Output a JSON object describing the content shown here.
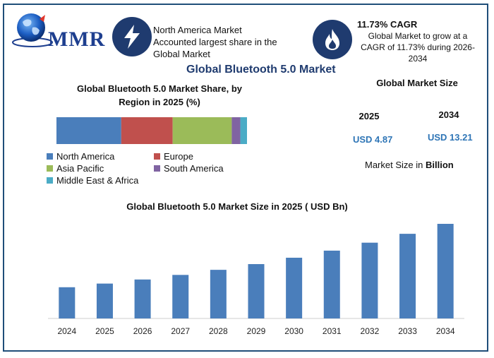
{
  "logo": {
    "text": "MMR"
  },
  "info_card": {
    "lines": [
      "North America Market",
      "Accounted largest share in the",
      "Global Market"
    ]
  },
  "cagr_card": {
    "title": "11.73% CAGR",
    "lines": [
      "Global Market to grow at a",
      "CAGR of 11.73% during 2026-",
      "2034"
    ]
  },
  "main_title": "Global Bluetooth 5.0 Market",
  "market_size": {
    "title": "Global Market Size",
    "year_a": "2025",
    "year_b": "2034",
    "value_a": "USD 4.87",
    "value_b": "USD 13.21",
    "note_prefix": "Market Size in ",
    "note_bold": "Billion"
  },
  "colors": {
    "north_america": "#4a7ebb",
    "europe": "#c0504d",
    "asia_pacific": "#9bbb59",
    "south_america": "#8064a2",
    "mea": "#4bacc6",
    "bar": "#4a7ebb",
    "dark_blue": "#1f3b6f"
  },
  "chart_data": [
    {
      "type": "bar",
      "orientation": "horizontal-stacked",
      "title": "Global Bluetooth  5.0 Market Share, by Region in 2025 (%)",
      "title_lines": [
        "Global Bluetooth  5.0 Market Share, by",
        "Region in 2025 (%)"
      ],
      "series": [
        {
          "name": "North America",
          "value": 34,
          "color": "#4a7ebb"
        },
        {
          "name": "Europe",
          "value": 27,
          "color": "#c0504d"
        },
        {
          "name": "Asia Pacific",
          "value": 31,
          "color": "#9bbb59"
        },
        {
          "name": "South America",
          "value": 4.5,
          "color": "#8064a2"
        },
        {
          "name": "Middle East & Africa",
          "value": 3.5,
          "color": "#4bacc6"
        }
      ],
      "legend_position": "bottom"
    },
    {
      "type": "bar",
      "title": "Global Bluetooth 5.0 Market Size in 2025 ( USD Bn)",
      "categories": [
        "2024",
        "2025",
        "2026",
        "2027",
        "2028",
        "2029",
        "2030",
        "2031",
        "2032",
        "2033",
        "2034"
      ],
      "values": [
        4.36,
        4.87,
        5.44,
        6.08,
        6.79,
        7.59,
        8.48,
        9.47,
        10.58,
        11.82,
        13.21
      ],
      "ylim": [
        0,
        14
      ],
      "grid": false
    }
  ]
}
